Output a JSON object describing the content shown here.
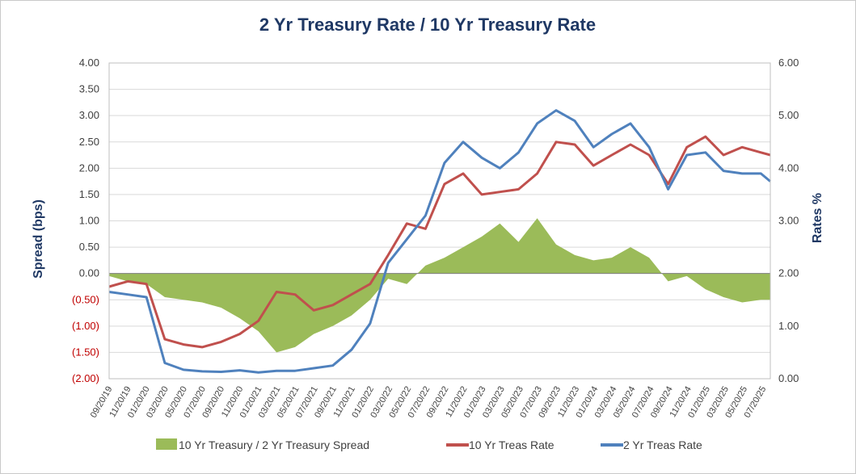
{
  "chart_data": {
    "type": "line",
    "title": "2 Yr Treasury Rate / 10 Yr Treasury Rate",
    "ylabel_left": "Spread (bps)",
    "ylabel_right": "Rates %",
    "ylim_left": [
      -2.0,
      4.0
    ],
    "ylim_right": [
      0.0,
      6.0
    ],
    "yticks_left": [
      "4.00",
      "3.50",
      "3.00",
      "2.50",
      "2.00",
      "1.50",
      "1.00",
      "0.50",
      "0.00",
      "(0.50)",
      "(1.00)",
      "(1.50)",
      "(2.00)"
    ],
    "yticks_right": [
      "6.00",
      "5.00",
      "4.00",
      "3.00",
      "2.00",
      "1.00",
      "0.00"
    ],
    "xticks": [
      "09/20/19",
      "11/20/19",
      "01/20/20",
      "03/20/20",
      "05/20/20",
      "07/20/20",
      "09/20/20",
      "11/20/20",
      "01/20/21",
      "03/20/21",
      "05/20/21",
      "07/20/21",
      "09/20/21",
      "11/20/21",
      "01/20/22",
      "03/20/22",
      "05/20/22",
      "07/20/22",
      "09/20/22",
      "11/20/22",
      "01/20/23",
      "03/20/23",
      "05/20/23",
      "07/20/23",
      "09/20/23",
      "11/20/23",
      "01/20/24",
      "03/20/24",
      "05/20/24",
      "07/20/24",
      "09/20/24",
      "11/20/24",
      "01/20/25",
      "03/20/25",
      "05/20/25",
      "07/20/25"
    ],
    "grid": "horizontal",
    "legend_placement": "bottom",
    "series": [
      {
        "name": "10 Yr Treasury / 2 Yr Treasury Spread",
        "type": "area",
        "axis": "left",
        "color": "#9bbb59",
        "x": [
          "2019-09-20",
          "2019-11-20",
          "2020-01-20",
          "2020-03-20",
          "2020-05-20",
          "2020-07-20",
          "2020-09-20",
          "2020-11-20",
          "2021-01-20",
          "2021-03-20",
          "2021-05-20",
          "2021-07-20",
          "2021-09-20",
          "2021-11-20",
          "2022-01-20",
          "2022-03-20",
          "2022-05-20",
          "2022-07-20",
          "2022-09-20",
          "2022-11-20",
          "2023-01-20",
          "2023-03-20",
          "2023-05-20",
          "2023-07-20",
          "2023-09-20",
          "2023-11-20",
          "2024-01-20",
          "2024-03-20",
          "2024-05-20",
          "2024-07-20",
          "2024-09-20",
          "2024-11-20",
          "2025-01-20",
          "2025-03-20",
          "2025-05-20",
          "2025-07-20",
          "2025-08-20"
        ],
        "values": [
          -0.05,
          -0.15,
          -0.2,
          -0.45,
          -0.5,
          -0.55,
          -0.65,
          -0.85,
          -1.1,
          -1.5,
          -1.4,
          -1.15,
          -1.0,
          -0.8,
          -0.5,
          -0.1,
          -0.2,
          0.15,
          0.3,
          0.5,
          0.7,
          0.95,
          0.6,
          1.05,
          0.55,
          0.35,
          0.25,
          0.3,
          0.5,
          0.3,
          -0.15,
          -0.05,
          -0.3,
          -0.45,
          -0.55,
          -0.5,
          -0.5
        ]
      },
      {
        "name": "10 Yr Treas Rate",
        "type": "line",
        "axis": "right",
        "color": "#c0504d",
        "x": [
          "2019-09-20",
          "2019-11-20",
          "2020-01-20",
          "2020-03-20",
          "2020-05-20",
          "2020-07-20",
          "2020-09-20",
          "2020-11-20",
          "2021-01-20",
          "2021-03-20",
          "2021-05-20",
          "2021-07-20",
          "2021-09-20",
          "2021-11-20",
          "2022-01-20",
          "2022-03-20",
          "2022-05-20",
          "2022-07-20",
          "2022-09-20",
          "2022-11-20",
          "2023-01-20",
          "2023-03-20",
          "2023-05-20",
          "2023-07-20",
          "2023-09-20",
          "2023-11-20",
          "2024-01-20",
          "2024-03-20",
          "2024-05-20",
          "2024-07-20",
          "2024-09-20",
          "2024-11-20",
          "2025-01-20",
          "2025-03-20",
          "2025-05-20",
          "2025-07-20",
          "2025-08-20"
        ],
        "values": [
          1.75,
          1.85,
          1.8,
          0.75,
          0.65,
          0.6,
          0.7,
          0.85,
          1.1,
          1.65,
          1.6,
          1.3,
          1.4,
          1.6,
          1.8,
          2.35,
          2.95,
          2.85,
          3.7,
          3.9,
          3.5,
          3.55,
          3.6,
          3.9,
          4.5,
          4.45,
          4.05,
          4.25,
          4.45,
          4.25,
          3.7,
          4.4,
          4.6,
          4.25,
          4.4,
          4.3,
          4.25
        ]
      },
      {
        "name": "2 Yr Treas Rate",
        "type": "line",
        "axis": "right",
        "color": "#4f81bd",
        "x": [
          "2019-09-20",
          "2019-11-20",
          "2020-01-20",
          "2020-03-20",
          "2020-05-20",
          "2020-07-20",
          "2020-09-20",
          "2020-11-20",
          "2021-01-20",
          "2021-03-20",
          "2021-05-20",
          "2021-07-20",
          "2021-09-20",
          "2021-11-20",
          "2022-01-20",
          "2022-03-20",
          "2022-05-20",
          "2022-07-20",
          "2022-09-20",
          "2022-11-20",
          "2023-01-20",
          "2023-03-20",
          "2023-05-20",
          "2023-07-20",
          "2023-09-20",
          "2023-11-20",
          "2024-01-20",
          "2024-03-20",
          "2024-05-20",
          "2024-07-20",
          "2024-09-20",
          "2024-11-20",
          "2025-01-20",
          "2025-03-20",
          "2025-05-20",
          "2025-07-20",
          "2025-08-20"
        ],
        "values": [
          1.65,
          1.6,
          1.55,
          0.3,
          0.17,
          0.14,
          0.13,
          0.16,
          0.12,
          0.15,
          0.15,
          0.2,
          0.25,
          0.55,
          1.05,
          2.2,
          2.65,
          3.1,
          4.1,
          4.5,
          4.2,
          4.0,
          4.3,
          4.85,
          5.1,
          4.9,
          4.4,
          4.65,
          4.85,
          4.4,
          3.6,
          4.25,
          4.3,
          3.95,
          3.9,
          3.9,
          3.75
        ]
      }
    ]
  }
}
